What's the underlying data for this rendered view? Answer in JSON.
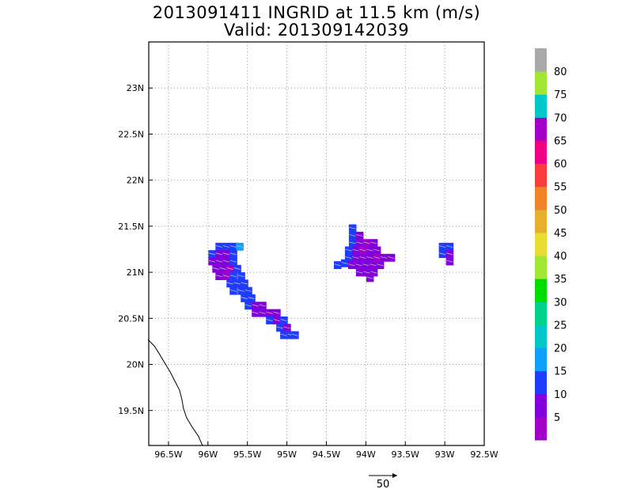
{
  "chart_data": {
    "type": "heatmap",
    "title": "2013091411 INGRID at 11.5 km (m/s)",
    "subtitle": "Valid: 201309142039",
    "xlim": [
      -96.75,
      -92.5
    ],
    "ylim": [
      19.12,
      23.5
    ],
    "x_ticks": [
      {
        "value": -96.5,
        "label": "96.5W"
      },
      {
        "value": -96.0,
        "label": "96W"
      },
      {
        "value": -95.5,
        "label": "95.5W"
      },
      {
        "value": -95.0,
        "label": "95W"
      },
      {
        "value": -94.5,
        "label": "94.5W"
      },
      {
        "value": -94.0,
        "label": "94W"
      },
      {
        "value": -93.5,
        "label": "93.5W"
      },
      {
        "value": -93.0,
        "label": "93W"
      },
      {
        "value": -92.5,
        "label": "92.5W"
      }
    ],
    "y_ticks": [
      {
        "value": 19.5,
        "label": "19.5N"
      },
      {
        "value": 20.0,
        "label": "20N"
      },
      {
        "value": 20.5,
        "label": "20.5N"
      },
      {
        "value": 21.0,
        "label": "21N"
      },
      {
        "value": 21.5,
        "label": "21.5N"
      },
      {
        "value": 22.0,
        "label": "22N"
      },
      {
        "value": 22.5,
        "label": "22.5N"
      },
      {
        "value": 23.0,
        "label": "23N"
      }
    ],
    "grid": true,
    "colorbar": {
      "colors": [
        "#a000c8",
        "#8200dc",
        "#1e3cff",
        "#0fa0ff",
        "#00c8c8",
        "#00d28c",
        "#00dc00",
        "#a0e632",
        "#e6dc32",
        "#e6af2d",
        "#f08228",
        "#fa3c3c",
        "#f00082",
        "#a000c8",
        "#00c8c8",
        "#a0e632",
        "#aaaaaa"
      ],
      "labels": [
        "5",
        "10",
        "15",
        "20",
        "25",
        "30",
        "35",
        "40",
        "45",
        "50",
        "55",
        "60",
        "65",
        "70",
        "75",
        "80"
      ]
    },
    "coastline": [
      [
        -96.76,
        20.27
      ],
      [
        -96.68,
        20.2
      ],
      [
        -96.62,
        20.12
      ],
      [
        -96.55,
        20.02
      ],
      [
        -96.48,
        19.92
      ],
      [
        -96.42,
        19.82
      ],
      [
        -96.36,
        19.72
      ],
      [
        -96.33,
        19.62
      ],
      [
        -96.31,
        19.52
      ],
      [
        -96.27,
        19.42
      ],
      [
        -96.2,
        19.32
      ],
      [
        -96.12,
        19.22
      ],
      [
        -96.07,
        19.12
      ]
    ],
    "cells": [
      {
        "lon": -95.86,
        "lat": 21.28,
        "v": 12
      },
      {
        "lon": -95.77,
        "lat": 21.28,
        "v": 11
      },
      {
        "lon": -95.68,
        "lat": 21.28,
        "v": 11
      },
      {
        "lon": -95.6,
        "lat": 21.28,
        "v": 17
      },
      {
        "lon": -95.95,
        "lat": 21.2,
        "v": 12
      },
      {
        "lon": -95.86,
        "lat": 21.2,
        "v": 5
      },
      {
        "lon": -95.77,
        "lat": 21.2,
        "v": 7
      },
      {
        "lon": -95.68,
        "lat": 21.2,
        "v": 12
      },
      {
        "lon": -95.95,
        "lat": 21.12,
        "v": 5
      },
      {
        "lon": -95.86,
        "lat": 21.12,
        "v": 5
      },
      {
        "lon": -95.77,
        "lat": 21.12,
        "v": 6
      },
      {
        "lon": -95.68,
        "lat": 21.12,
        "v": 12
      },
      {
        "lon": -95.9,
        "lat": 21.04,
        "v": 5
      },
      {
        "lon": -95.81,
        "lat": 21.04,
        "v": 5
      },
      {
        "lon": -95.72,
        "lat": 21.04,
        "v": 4
      },
      {
        "lon": -95.63,
        "lat": 21.04,
        "v": 12
      },
      {
        "lon": -95.86,
        "lat": 20.96,
        "v": 5
      },
      {
        "lon": -95.77,
        "lat": 20.96,
        "v": 4
      },
      {
        "lon": -95.68,
        "lat": 20.96,
        "v": 12
      },
      {
        "lon": -95.58,
        "lat": 20.96,
        "v": 11
      },
      {
        "lon": -95.72,
        "lat": 20.88,
        "v": 12
      },
      {
        "lon": -95.63,
        "lat": 20.88,
        "v": 11
      },
      {
        "lon": -95.54,
        "lat": 20.88,
        "v": 12
      },
      {
        "lon": -95.68,
        "lat": 20.8,
        "v": 11
      },
      {
        "lon": -95.58,
        "lat": 20.8,
        "v": 12
      },
      {
        "lon": -95.49,
        "lat": 20.8,
        "v": 11
      },
      {
        "lon": -95.54,
        "lat": 20.72,
        "v": 12
      },
      {
        "lon": -95.45,
        "lat": 20.72,
        "v": 11
      },
      {
        "lon": -95.49,
        "lat": 20.64,
        "v": 12
      },
      {
        "lon": -95.4,
        "lat": 20.64,
        "v": 7
      },
      {
        "lon": -95.31,
        "lat": 20.64,
        "v": 6
      },
      {
        "lon": -95.4,
        "lat": 20.56,
        "v": 6
      },
      {
        "lon": -95.31,
        "lat": 20.56,
        "v": 5
      },
      {
        "lon": -95.22,
        "lat": 20.56,
        "v": 7
      },
      {
        "lon": -95.13,
        "lat": 20.56,
        "v": 6
      },
      {
        "lon": -95.22,
        "lat": 20.48,
        "v": 12
      },
      {
        "lon": -95.13,
        "lat": 20.48,
        "v": 6
      },
      {
        "lon": -95.04,
        "lat": 20.48,
        "v": 11
      },
      {
        "lon": -95.09,
        "lat": 20.4,
        "v": 12
      },
      {
        "lon": -95.0,
        "lat": 20.4,
        "v": 6
      },
      {
        "lon": -95.04,
        "lat": 20.32,
        "v": 12
      },
      {
        "lon": -94.95,
        "lat": 20.32,
        "v": 11
      },
      {
        "lon": -94.9,
        "lat": 20.32,
        "v": 12
      },
      {
        "lon": -94.17,
        "lat": 21.48,
        "v": 11
      },
      {
        "lon": -94.17,
        "lat": 21.4,
        "v": 11
      },
      {
        "lon": -94.08,
        "lat": 21.4,
        "v": 5
      },
      {
        "lon": -94.17,
        "lat": 21.32,
        "v": 11
      },
      {
        "lon": -94.08,
        "lat": 21.32,
        "v": 5
      },
      {
        "lon": -93.99,
        "lat": 21.32,
        "v": 4
      },
      {
        "lon": -93.9,
        "lat": 21.32,
        "v": 5
      },
      {
        "lon": -94.22,
        "lat": 21.24,
        "v": 11
      },
      {
        "lon": -94.13,
        "lat": 21.24,
        "v": 5
      },
      {
        "lon": -94.04,
        "lat": 21.24,
        "v": 4
      },
      {
        "lon": -93.95,
        "lat": 21.24,
        "v": 5
      },
      {
        "lon": -93.86,
        "lat": 21.24,
        "v": 5
      },
      {
        "lon": -94.22,
        "lat": 21.16,
        "v": 11
      },
      {
        "lon": -94.13,
        "lat": 21.16,
        "v": 5
      },
      {
        "lon": -94.04,
        "lat": 21.16,
        "v": 5
      },
      {
        "lon": -93.95,
        "lat": 21.16,
        "v": 5
      },
      {
        "lon": -93.86,
        "lat": 21.16,
        "v": 4
      },
      {
        "lon": -93.77,
        "lat": 21.16,
        "v": 5
      },
      {
        "lon": -93.68,
        "lat": 21.16,
        "v": 5
      },
      {
        "lon": -94.27,
        "lat": 21.1,
        "v": 11
      },
      {
        "lon": -94.18,
        "lat": 21.08,
        "v": 5
      },
      {
        "lon": -94.09,
        "lat": 21.08,
        "v": 5
      },
      {
        "lon": -94.0,
        "lat": 21.08,
        "v": 5
      },
      {
        "lon": -93.91,
        "lat": 21.08,
        "v": 5
      },
      {
        "lon": -93.82,
        "lat": 21.08,
        "v": 5
      },
      {
        "lon": -94.36,
        "lat": 21.08,
        "v": 11
      },
      {
        "lon": -94.08,
        "lat": 21.0,
        "v": 5
      },
      {
        "lon": -93.99,
        "lat": 21.0,
        "v": 5
      },
      {
        "lon": -93.9,
        "lat": 21.0,
        "v": 5
      },
      {
        "lon": -93.95,
        "lat": 20.94,
        "v": 5
      },
      {
        "lon": -93.03,
        "lat": 21.28,
        "v": 11
      },
      {
        "lon": -92.94,
        "lat": 21.28,
        "v": 11
      },
      {
        "lon": -93.03,
        "lat": 21.2,
        "v": 11
      },
      {
        "lon": -92.94,
        "lat": 21.2,
        "v": 5
      },
      {
        "lon": -92.94,
        "lat": 21.12,
        "v": 5
      }
    ],
    "reference_vector": {
      "value": 50,
      "label": "50"
    }
  }
}
